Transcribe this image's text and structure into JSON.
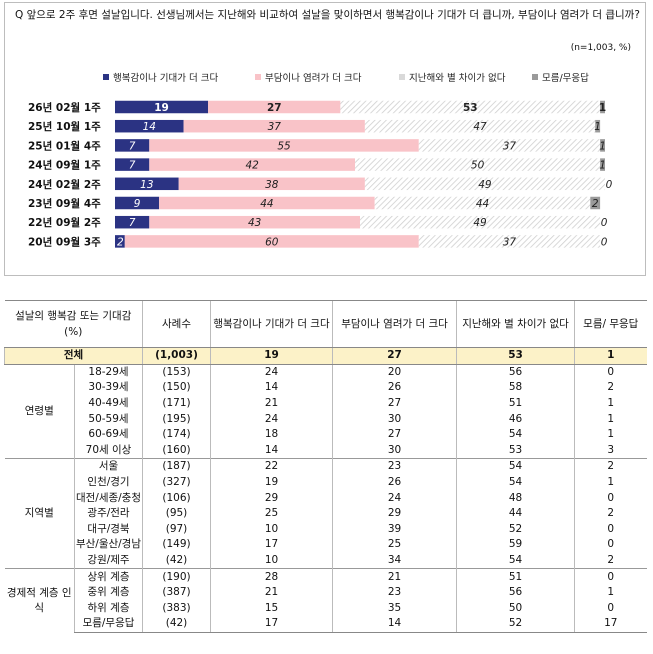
{
  "question": "Q 앞으로 2주 후면 설날입니다. 선생님께서는 지난해와 비교하여 설날을 맞이하면서 행복감이나 기대가 더 큽니까, 부담이나 염려가 더 큽니까?",
  "note": "(n=1,003, %)",
  "colors": {
    "happy": "#2b3383",
    "burden": "#f9c3c8",
    "same": "#e6e6e6",
    "dk": "#9a9a9a",
    "total_row": "#fcf2c8"
  },
  "chart_data": {
    "type": "bar",
    "orientation": "horizontal-stacked",
    "categories": [
      "26년 02월 1주",
      "25년 10월 1주",
      "25년 01월 4주",
      "24년 09월 1주",
      "24년 02월 2주",
      "23년 09월 4주",
      "22년 09월 2주",
      "20년 09월 3주"
    ],
    "series": [
      {
        "name": "행복감이나 기대가 더 크다",
        "values": [
          19,
          14,
          7,
          7,
          13,
          9,
          7,
          2
        ]
      },
      {
        "name": "부담이나 염려가 더 크다",
        "values": [
          27,
          37,
          55,
          42,
          38,
          44,
          43,
          60
        ]
      },
      {
        "name": "지난해와 별 차이가 없다",
        "values": [
          53,
          47,
          37,
          50,
          49,
          44,
          49,
          37
        ]
      },
      {
        "name": "모름/무응답",
        "values": [
          1,
          1,
          1,
          1,
          0,
          2,
          0,
          0
        ]
      }
    ],
    "legend_position": "top",
    "xlim": [
      0,
      100
    ]
  },
  "table": {
    "headers": [
      "설날의 행복감 또는 기대감 (%)",
      "사례수",
      "행복감이나 기대가 더 크다",
      "부담이나 염려가 더 크다",
      "지난해와 별 차이가 없다",
      "모름/ 무응답"
    ],
    "total": {
      "label": "전체",
      "n": "(1,003)",
      "v": [
        "19",
        "27",
        "53",
        "1"
      ]
    },
    "groups": [
      {
        "name": "연령별",
        "rows": [
          {
            "label": "18-29세",
            "n": "(153)",
            "v": [
              "24",
              "20",
              "56",
              "0"
            ]
          },
          {
            "label": "30-39세",
            "n": "(150)",
            "v": [
              "14",
              "26",
              "58",
              "2"
            ]
          },
          {
            "label": "40-49세",
            "n": "(171)",
            "v": [
              "21",
              "27",
              "51",
              "1"
            ]
          },
          {
            "label": "50-59세",
            "n": "(195)",
            "v": [
              "24",
              "30",
              "46",
              "1"
            ]
          },
          {
            "label": "60-69세",
            "n": "(174)",
            "v": [
              "18",
              "27",
              "54",
              "1"
            ]
          },
          {
            "label": "70세 이상",
            "n": "(160)",
            "v": [
              "14",
              "30",
              "53",
              "3"
            ]
          }
        ]
      },
      {
        "name": "지역별",
        "rows": [
          {
            "label": "서울",
            "n": "(187)",
            "v": [
              "22",
              "23",
              "54",
              "2"
            ]
          },
          {
            "label": "인천/경기",
            "n": "(327)",
            "v": [
              "19",
              "26",
              "54",
              "1"
            ]
          },
          {
            "label": "대전/세종/충청",
            "n": "(106)",
            "v": [
              "29",
              "24",
              "48",
              "0"
            ]
          },
          {
            "label": "광주/전라",
            "n": "(95)",
            "v": [
              "25",
              "29",
              "44",
              "2"
            ]
          },
          {
            "label": "대구/경북",
            "n": "(97)",
            "v": [
              "10",
              "39",
              "52",
              "0"
            ]
          },
          {
            "label": "부산/울산/경남",
            "n": "(149)",
            "v": [
              "17",
              "25",
              "59",
              "0"
            ]
          },
          {
            "label": "강원/제주",
            "n": "(42)",
            "v": [
              "10",
              "34",
              "54",
              "2"
            ]
          }
        ]
      },
      {
        "name": "경제적 계층 인식",
        "rows": [
          {
            "label": "상위 계층",
            "n": "(190)",
            "v": [
              "28",
              "21",
              "51",
              "0"
            ]
          },
          {
            "label": "중위 계층",
            "n": "(387)",
            "v": [
              "21",
              "23",
              "56",
              "1"
            ]
          },
          {
            "label": "하위 계층",
            "n": "(383)",
            "v": [
              "15",
              "35",
              "50",
              "0"
            ]
          },
          {
            "label": "모름/무응답",
            "n": "(42)",
            "v": [
              "17",
              "14",
              "52",
              "17"
            ]
          }
        ]
      }
    ]
  }
}
